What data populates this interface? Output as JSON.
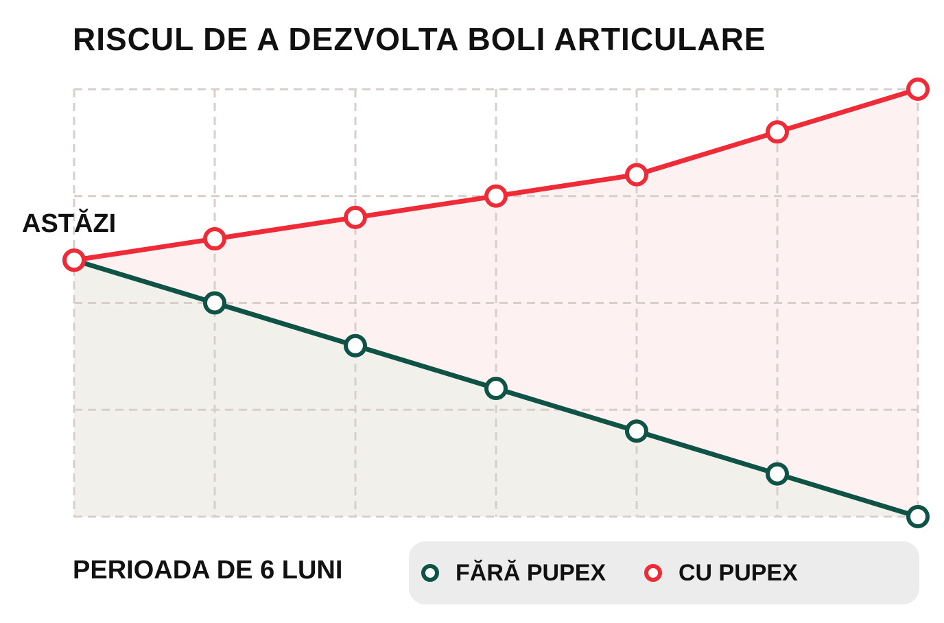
{
  "chart_data": {
    "type": "line",
    "title": "RISCUL DE A DEZVOLTA BOLI ARTICULARE",
    "xlabel": "PERIOADA DE 6 LUNI",
    "start_label": "ASTĂZI",
    "x": [
      0,
      1,
      2,
      3,
      4,
      5,
      6
    ],
    "xlim": [
      0,
      6
    ],
    "ylim": [
      0,
      4
    ],
    "grid": true,
    "legend_position": "bottom-right",
    "series": [
      {
        "name": "FĂRĂ PUPEX",
        "color": "#0f5246",
        "fill": "#f2f0ea",
        "values": [
          2.4,
          2.0,
          1.6,
          1.2,
          0.8,
          0.4,
          0.0
        ]
      },
      {
        "name": "CU PUPEX",
        "color": "#ef2b37",
        "fill": "#fdf1f1",
        "values": [
          2.4,
          2.6,
          2.8,
          3.0,
          3.2,
          3.6,
          4.0
        ]
      }
    ]
  }
}
